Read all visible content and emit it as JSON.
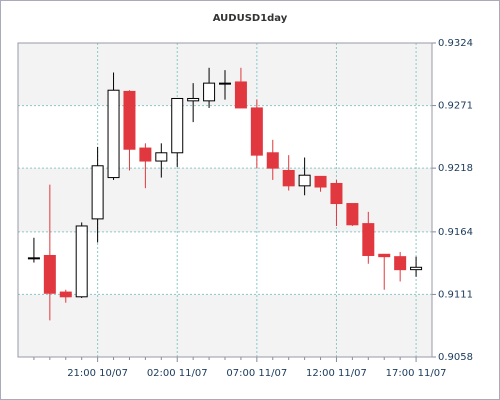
{
  "chart_data": {
    "type": "candlestick",
    "title": "AUDUSD1day",
    "categories": [
      null,
      null,
      null,
      null,
      "21:00 10/07",
      null,
      null,
      null,
      null,
      "02:00 11/07",
      null,
      null,
      null,
      null,
      "07:00 11/07",
      null,
      null,
      null,
      null,
      "12:00 11/07",
      null,
      null,
      null,
      null,
      "17:00 11/07"
    ],
    "open": [
      0.9142,
      0.9144,
      0.9113,
      0.9109,
      0.9175,
      0.921,
      0.9283,
      0.9235,
      0.9224,
      0.9231,
      0.9275,
      0.9275,
      0.929,
      0.9291,
      0.9269,
      0.9231,
      0.9216,
      0.9203,
      0.9211,
      0.9205,
      0.9188,
      0.9171,
      0.9145,
      0.9143,
      0.9132
    ],
    "high": [
      0.9159,
      0.9204,
      0.9115,
      0.9172,
      0.9236,
      0.9299,
      0.9284,
      0.9239,
      0.9239,
      0.9277,
      0.929,
      0.9303,
      0.9301,
      0.9303,
      0.9276,
      0.9242,
      0.9229,
      0.9227,
      0.9211,
      0.9208,
      0.9188,
      0.9181,
      0.9145,
      0.9147,
      0.9143
    ],
    "low": [
      0.9138,
      0.9089,
      0.9104,
      0.9108,
      0.9155,
      0.9208,
      0.9216,
      0.9201,
      0.921,
      0.9219,
      0.9257,
      0.9269,
      0.9276,
      0.9269,
      0.9218,
      0.9208,
      0.9199,
      0.9195,
      0.9198,
      0.9169,
      0.9169,
      0.9137,
      0.9115,
      0.9122,
      0.9126
    ],
    "close": [
      0.9142,
      0.9112,
      0.9109,
      0.9169,
      0.922,
      0.9284,
      0.9234,
      0.9224,
      0.9231,
      0.9277,
      0.9277,
      0.929,
      0.929,
      0.9269,
      0.9229,
      0.9218,
      0.9203,
      0.9212,
      0.9202,
      0.9188,
      0.917,
      0.9144,
      0.9143,
      0.9132,
      0.9134
    ],
    "up_color": "#ffffff",
    "down_color": "#e0383e",
    "ylim": [
      0.9058,
      0.9324
    ],
    "yticks": [
      0.9058,
      0.9111,
      0.9164,
      0.9218,
      0.9271,
      0.9324
    ],
    "grid": true
  }
}
